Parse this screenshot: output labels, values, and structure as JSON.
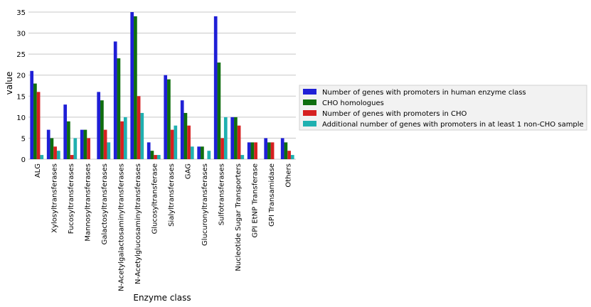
{
  "chart_data": {
    "type": "bar",
    "xlabel": "Enzyme class",
    "ylabel": "value",
    "ylim": [
      0,
      35
    ],
    "yticks": [
      0,
      5,
      10,
      15,
      20,
      25,
      30,
      35
    ],
    "grid": "horizontal",
    "legend_position": "right",
    "categories": [
      "ALG",
      "Xylosyltransferases",
      "Fucosyltransferases",
      "Mannosyltransferases",
      "Galactosyltransferases",
      "N-Acetylgalactosaminyltransferases",
      "N-Acetylglucosaminyltransferases",
      "Glucosyltransferase",
      "Sialyltransferases",
      "GAG",
      "Glucuronyltransferases",
      "Sulfotransferases",
      "Nucleotide Sugar Transporters",
      "GPI EtNP Transferase",
      "GPI Transamidase",
      "Others"
    ],
    "series": [
      {
        "name": "Number of genes with promoters in human enzyme class",
        "color": "#1f1fd6",
        "values": [
          21,
          7,
          13,
          7,
          16,
          28,
          35,
          4,
          20,
          14,
          3,
          34,
          10,
          4,
          5,
          5
        ]
      },
      {
        "name": "CHO homologues",
        "color": "#0f6e0f",
        "values": [
          18,
          5,
          9,
          7,
          14,
          24,
          34,
          2,
          19,
          11,
          3,
          23,
          10,
          4,
          4,
          4
        ]
      },
      {
        "name": "Number of genes with promoters in CHO",
        "color": "#d62020",
        "values": [
          16,
          3,
          1,
          5,
          7,
          9,
          15,
          1,
          7,
          8,
          0,
          5,
          8,
          4,
          4,
          2
        ]
      },
      {
        "name": "Additional number of genes with promoters in at least 1 non-CHO sample",
        "color": "#1fb0b0",
        "values": [
          1,
          2,
          5,
          0,
          4,
          10,
          11,
          1,
          8,
          3,
          2,
          10,
          1,
          0,
          0,
          1
        ]
      }
    ]
  }
}
